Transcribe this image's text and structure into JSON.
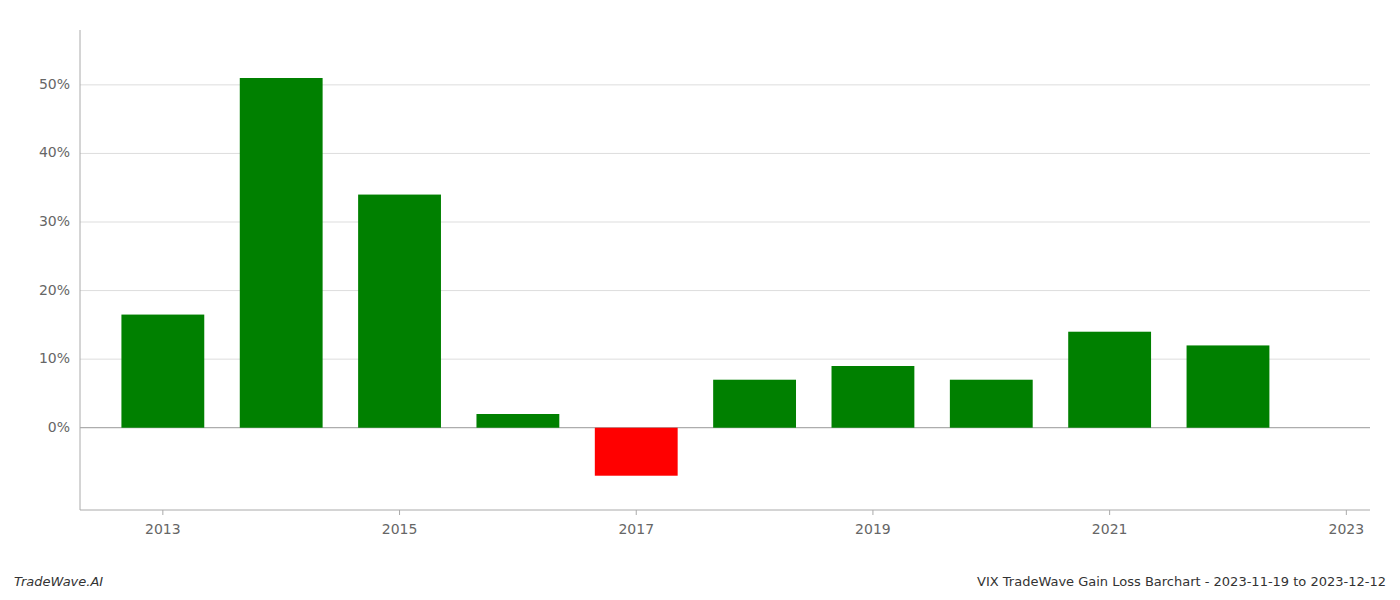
{
  "chart_data": {
    "type": "bar",
    "x": [
      2013,
      2014,
      2015,
      2016,
      2017,
      2018,
      2019,
      2020,
      2021,
      2022
    ],
    "values": [
      0.165,
      0.51,
      0.34,
      0.02,
      -0.07,
      0.07,
      0.09,
      0.07,
      0.14,
      0.12
    ],
    "colors": [
      "#008000",
      "#008000",
      "#008000",
      "#008000",
      "#ff0000",
      "#008000",
      "#008000",
      "#008000",
      "#008000",
      "#008000"
    ],
    "xlim": [
      2012.3,
      2023.2
    ],
    "xticks": [
      2013,
      2015,
      2017,
      2019,
      2021,
      2023
    ],
    "ylim": [
      -0.12,
      0.58
    ],
    "yticks": [
      {
        "value": 0.0,
        "label": "0%"
      },
      {
        "value": 0.1,
        "label": "10%"
      },
      {
        "value": 0.2,
        "label": "20%"
      },
      {
        "value": 0.3,
        "label": "30%"
      },
      {
        "value": 0.4,
        "label": "40%"
      },
      {
        "value": 0.5,
        "label": "50%"
      }
    ],
    "grid": true,
    "annotations": [
      "TradeWave.AI",
      "VIX TradeWave Gain Loss Barchart - 2023-11-19 to 2023-12-12"
    ]
  }
}
